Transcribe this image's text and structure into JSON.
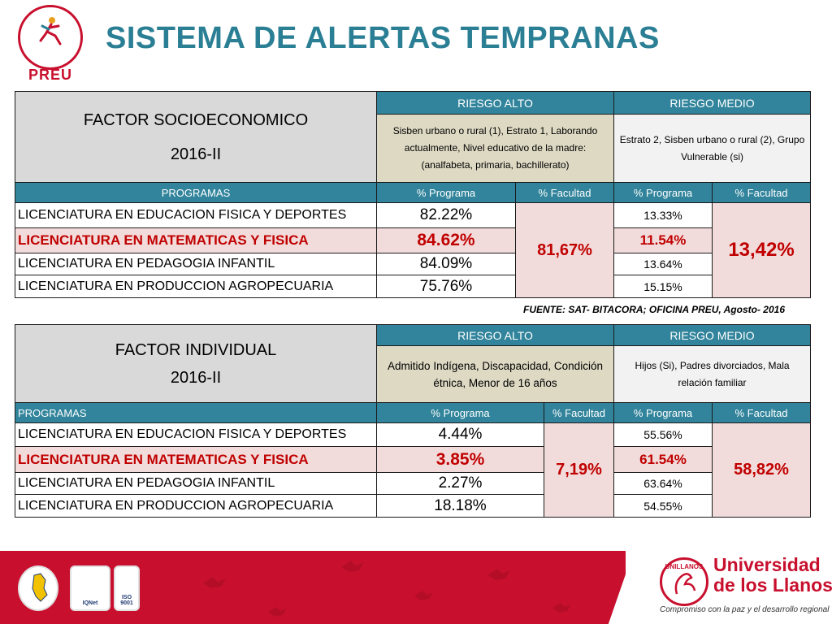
{
  "header": {
    "logo_word": "PREU",
    "title": "SISTEMA DE ALERTAS TEMPRANAS"
  },
  "socio": {
    "factor_title": "FACTOR SOCIOECONOMICO",
    "term": "2016-II",
    "risk_high_label": "RIESGO ALTO",
    "risk_medium_label": "RIESGO MEDIO",
    "risk_high_desc": "Sisben urbano o rural (1),  Estrato 1, Laborando actualmente, Nivel educativo de la madre: (analfabeta, primaria, bachillerato)",
    "risk_medium_desc": "Estrato 2, Sisben urbano o rural (2), Grupo Vulnerable (si)",
    "col_programs": "PROGRAMAS",
    "col_pct_program": "% Programa",
    "col_pct_faculty": "% Facultad",
    "faculty_high": "81,67%",
    "faculty_medium": "13,42%",
    "rows": [
      {
        "program": "LICENCIATURA EN EDUCACION FISICA Y DEPORTES",
        "high": "82.22%",
        "medium": "13.33%"
      },
      {
        "program": "LICENCIATURA EN MATEMATICAS Y FISICA",
        "high": "84.62%",
        "medium": "11.54%"
      },
      {
        "program": "LICENCIATURA EN PEDAGOGIA INFANTIL",
        "high": "84.09%",
        "medium": "13.64%"
      },
      {
        "program": "LICENCIATURA EN PRODUCCION AGROPECUARIA",
        "high": "75.76%",
        "medium": "15.15%"
      }
    ]
  },
  "source": "FUENTE: SAT- BITACORA; OFICINA PREU, Agosto- 2016",
  "individual": {
    "factor_title": "FACTOR INDIVIDUAL",
    "term": "2016-II",
    "risk_high_label": "RIESGO ALTO",
    "risk_medium_label": "RIESGO MEDIO",
    "risk_high_desc": "Admitido Indígena, Discapacidad, Condición étnica, Menor de 16 años",
    "risk_medium_desc": "Hijos (Si), Padres divorciados, Mala relación familiar",
    "col_programs": "PROGRAMAS",
    "col_pct_program": "% Programa",
    "col_pct_faculty": "% Facultad",
    "faculty_high": "7,19%",
    "faculty_medium": "58,82%",
    "rows": [
      {
        "program": "LICENCIATURA EN EDUCACION FISICA Y DEPORTES",
        "high": "4.44%",
        "medium": "55.56%"
      },
      {
        "program": "LICENCIATURA EN MATEMATICAS Y FISICA",
        "high": "3.85%",
        "medium": "61.54%"
      },
      {
        "program": "LICENCIATURA EN PEDAGOGIA INFANTIL",
        "high": "2.27%",
        "medium": "63.64%"
      },
      {
        "program": "LICENCIATURA EN PRODUCCION AGROPECUARIA",
        "high": "18.18%",
        "medium": "54.55%"
      }
    ]
  },
  "footer": {
    "university_line1": "Universidad",
    "university_line2": "de los Llanos",
    "slogan": "Compromiso con la paz y el desarrollo regional",
    "seal_text": "UNILLANOS",
    "cert_iqnet": "IQNet",
    "cert_iso": "ISO 9001"
  },
  "colors": {
    "title": "#2b7f94",
    "header_teal": "#31849b",
    "highlight_red": "#c00000",
    "brand_red": "#c8102e"
  }
}
